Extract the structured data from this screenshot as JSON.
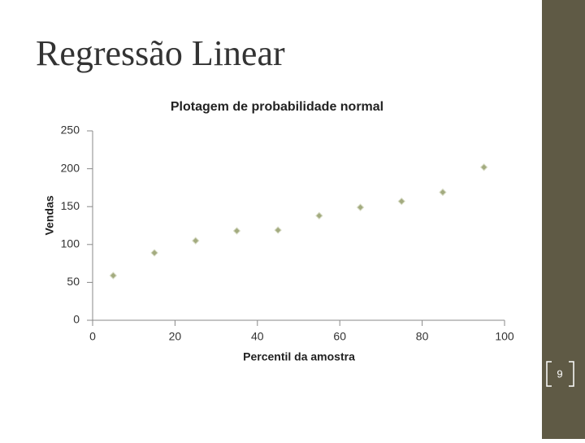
{
  "slide": {
    "title": "Regressão Linear",
    "page_number": "9"
  },
  "chart_data": {
    "type": "scatter",
    "title": "Plotagem de probabilidade normal",
    "x_label": "Percentil da amostra",
    "y_label": "Vendas",
    "x": [
      5,
      15,
      25,
      35,
      45,
      55,
      65,
      75,
      85,
      95
    ],
    "series": [
      {
        "color": "#a3ab7f",
        "values": [
          59,
          89,
          105,
          118,
          119,
          138,
          149,
          157,
          169,
          202
        ]
      }
    ],
    "xlim": [
      0,
      100
    ],
    "xticks": [
      0,
      20,
      40,
      60,
      80,
      100
    ],
    "ylim": [
      0,
      250
    ],
    "yticks": [
      0,
      50,
      100,
      150,
      200,
      250
    ]
  }
}
